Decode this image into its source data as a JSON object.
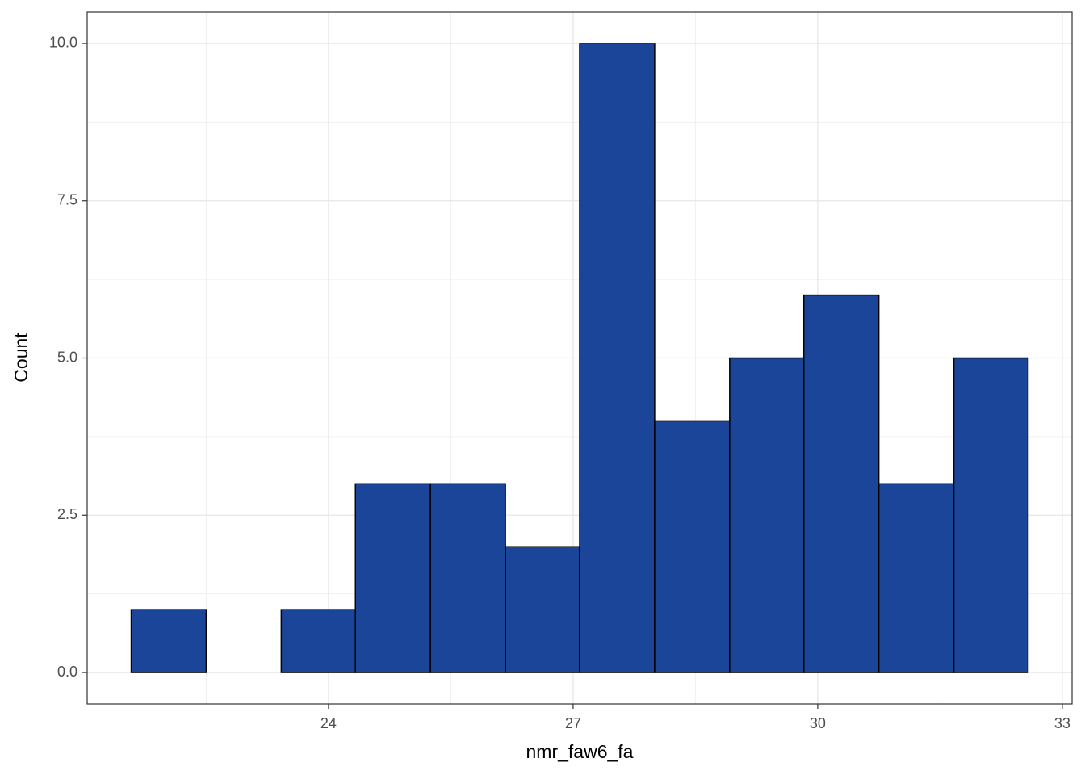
{
  "chart_data": {
    "type": "histogram",
    "x_label": "nmr_faw6_fa",
    "y_label": "Count",
    "bins": [
      21.58,
      22.5,
      23.42,
      24.33,
      25.25,
      26.17,
      27.08,
      28.0,
      28.92,
      29.83,
      30.75,
      31.67,
      32.58
    ],
    "values": [
      1,
      0,
      1,
      3,
      3,
      2,
      10,
      4,
      5,
      6,
      3,
      5
    ],
    "color": "#1a4599",
    "edge_color": "#000000",
    "xlim": [
      21.04,
      33.12
    ],
    "xticks": [
      24,
      27,
      30,
      33
    ],
    "x_minor_ticks": [
      22.5,
      25.5,
      28.5,
      31.5
    ],
    "ylim": [
      -0.5,
      10.5
    ],
    "yticks": [
      {
        "value": 0,
        "label": "0.0"
      },
      {
        "value": 2.5,
        "label": "2.5"
      },
      {
        "value": 5,
        "label": "5.0"
      },
      {
        "value": 7.5,
        "label": "7.5"
      },
      {
        "value": 10,
        "label": "10.0"
      }
    ],
    "y_minor_ticks": [
      1.25,
      3.75,
      6.25,
      8.75
    ],
    "grid": true
  }
}
